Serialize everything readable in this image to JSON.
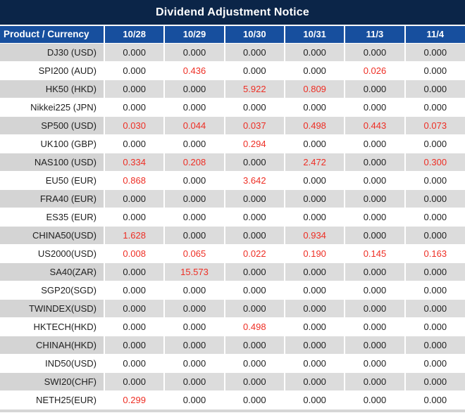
{
  "title": "Dividend Adjustment Notice",
  "colors": {
    "title_bg": "#0b2548",
    "header_bg": "#174f9e",
    "row_gray_label": "#d4d4d4",
    "row_gray_value": "#dcdcdc",
    "red_text": "#ee2e24",
    "dark_text": "#1f1f1f"
  },
  "table": {
    "product_header": "Product / Currency",
    "dates": [
      "10/28",
      "10/29",
      "10/30",
      "10/31",
      "11/3",
      "11/4"
    ],
    "rows": [
      {
        "product": "DJ30 (USD)",
        "values": [
          "0.000",
          "0.000",
          "0.000",
          "0.000",
          "0.000",
          "0.000"
        ],
        "red": []
      },
      {
        "product": "SPI200 (AUD)",
        "values": [
          "0.000",
          "0.436",
          "0.000",
          "0.000",
          "0.026",
          "0.000"
        ],
        "red": [
          1,
          4
        ]
      },
      {
        "product": "HK50 (HKD)",
        "values": [
          "0.000",
          "0.000",
          "5.922",
          "0.809",
          "0.000",
          "0.000"
        ],
        "red": [
          2,
          3
        ]
      },
      {
        "product": "Nikkei225 (JPN)",
        "values": [
          "0.000",
          "0.000",
          "0.000",
          "0.000",
          "0.000",
          "0.000"
        ],
        "red": []
      },
      {
        "product": "SP500 (USD)",
        "values": [
          "0.030",
          "0.044",
          "0.037",
          "0.498",
          "0.443",
          "0.073"
        ],
        "red": [
          0,
          1,
          2,
          3,
          4,
          5
        ]
      },
      {
        "product": "UK100 (GBP)",
        "values": [
          "0.000",
          "0.000",
          "0.294",
          "0.000",
          "0.000",
          "0.000"
        ],
        "red": [
          2
        ]
      },
      {
        "product": "NAS100 (USD)",
        "values": [
          "0.334",
          "0.208",
          "0.000",
          "2.472",
          "0.000",
          "0.300"
        ],
        "red": [
          0,
          1,
          3,
          5
        ]
      },
      {
        "product": "EU50 (EUR)",
        "values": [
          "0.868",
          "0.000",
          "3.642",
          "0.000",
          "0.000",
          "0.000"
        ],
        "red": [
          0,
          2
        ]
      },
      {
        "product": "FRA40 (EUR)",
        "values": [
          "0.000",
          "0.000",
          "0.000",
          "0.000",
          "0.000",
          "0.000"
        ],
        "red": []
      },
      {
        "product": "ES35 (EUR)",
        "values": [
          "0.000",
          "0.000",
          "0.000",
          "0.000",
          "0.000",
          "0.000"
        ],
        "red": []
      },
      {
        "product": "CHINA50(USD)",
        "values": [
          "1.628",
          "0.000",
          "0.000",
          "0.934",
          "0.000",
          "0.000"
        ],
        "red": [
          0,
          3
        ]
      },
      {
        "product": "US2000(USD)",
        "values": [
          "0.008",
          "0.065",
          "0.022",
          "0.190",
          "0.145",
          "0.163"
        ],
        "red": [
          0,
          1,
          2,
          3,
          4,
          5
        ]
      },
      {
        "product": "SA40(ZAR)",
        "values": [
          "0.000",
          "15.573",
          "0.000",
          "0.000",
          "0.000",
          "0.000"
        ],
        "red": [
          1
        ]
      },
      {
        "product": "SGP20(SGD)",
        "values": [
          "0.000",
          "0.000",
          "0.000",
          "0.000",
          "0.000",
          "0.000"
        ],
        "red": []
      },
      {
        "product": "TWINDEX(USD)",
        "values": [
          "0.000",
          "0.000",
          "0.000",
          "0.000",
          "0.000",
          "0.000"
        ],
        "red": []
      },
      {
        "product": "HKTECH(HKD)",
        "values": [
          "0.000",
          "0.000",
          "0.498",
          "0.000",
          "0.000",
          "0.000"
        ],
        "red": [
          2
        ]
      },
      {
        "product": "CHINAH(HKD)",
        "values": [
          "0.000",
          "0.000",
          "0.000",
          "0.000",
          "0.000",
          "0.000"
        ],
        "red": []
      },
      {
        "product": "IND50(USD)",
        "values": [
          "0.000",
          "0.000",
          "0.000",
          "0.000",
          "0.000",
          "0.000"
        ],
        "red": []
      },
      {
        "product": "SWI20(CHF)",
        "values": [
          "0.000",
          "0.000",
          "0.000",
          "0.000",
          "0.000",
          "0.000"
        ],
        "red": []
      },
      {
        "product": "NETH25(EUR)",
        "values": [
          "0.299",
          "0.000",
          "0.000",
          "0.000",
          "0.000",
          "0.000"
        ],
        "red": [
          0
        ]
      }
    ]
  }
}
